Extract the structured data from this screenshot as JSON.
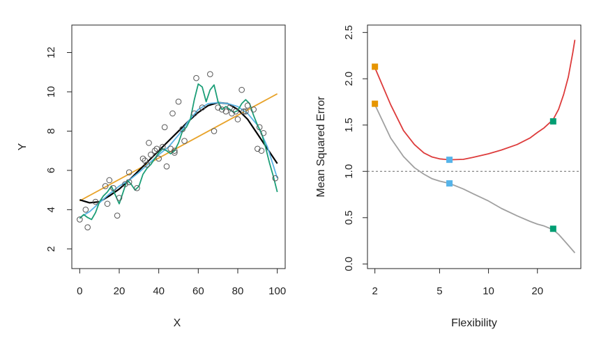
{
  "chart_data": [
    {
      "type": "scatter",
      "xlabel": "X",
      "ylabel": "Y",
      "xlim": [
        -4,
        104
      ],
      "ylim": [
        1,
        13.4
      ],
      "xticks": [
        "0",
        "20",
        "40",
        "60",
        "80",
        "100"
      ],
      "yticks": [
        "2",
        "4",
        "6",
        "8",
        "10",
        "12"
      ],
      "grid": false,
      "points": {
        "name": "",
        "x": [
          0,
          3,
          4,
          8,
          13,
          14,
          15,
          17,
          19,
          20,
          23,
          25,
          25,
          29,
          32,
          33,
          34,
          35,
          36,
          38,
          39,
          40,
          42,
          43,
          44,
          46,
          47,
          48,
          48,
          50,
          52,
          53,
          58,
          59,
          62,
          66,
          68,
          70,
          72,
          74,
          76,
          77,
          79,
          80,
          82,
          83,
          84,
          85,
          88,
          90,
          91,
          92,
          93,
          99
        ],
        "y": [
          3.5,
          4.0,
          3.1,
          4.4,
          5.2,
          4.3,
          5.5,
          5.1,
          3.7,
          4.6,
          5.3,
          5.4,
          5.9,
          5.1,
          6.6,
          6.5,
          6.3,
          7.4,
          6.8,
          7.0,
          7.1,
          6.6,
          7.2,
          8.2,
          6.2,
          7.1,
          8.9,
          7.0,
          6.9,
          9.5,
          8.1,
          7.5,
          8.9,
          10.7,
          9.2,
          10.9,
          8.0,
          9.2,
          9.1,
          9.0,
          9.2,
          8.9,
          9.0,
          8.6,
          10.1,
          9.0,
          9.0,
          9.3,
          9.1,
          7.1,
          8.2,
          7.0,
          7.9,
          5.6
        ]
      },
      "series": [
        {
          "name": "",
          "color": "#e8a32a",
          "x": [
            0,
            100
          ],
          "y": [
            4.45,
            9.9
          ]
        },
        {
          "name": "",
          "color": "#000000",
          "x": [
            0,
            5,
            10,
            15,
            20,
            25,
            30,
            35,
            40,
            45,
            50,
            55,
            60,
            65,
            70,
            75,
            80,
            85,
            90,
            95,
            100
          ],
          "y": [
            4.5,
            4.35,
            4.4,
            4.7,
            5.05,
            5.5,
            6.0,
            6.5,
            7.0,
            7.5,
            8.0,
            8.5,
            8.95,
            9.3,
            9.45,
            9.4,
            9.1,
            8.6,
            7.85,
            7.1,
            6.35
          ]
        },
        {
          "name": "",
          "color": "#5ab4e6",
          "x": [
            0,
            5,
            10,
            15,
            20,
            25,
            30,
            35,
            40,
            45,
            50,
            55,
            60,
            65,
            70,
            75,
            80,
            85,
            90,
            95,
            100
          ],
          "y": [
            3.6,
            3.9,
            4.35,
            4.8,
            5.2,
            5.5,
            5.9,
            6.35,
            6.8,
            7.2,
            7.8,
            8.5,
            9.1,
            9.4,
            9.45,
            9.4,
            9.25,
            8.9,
            8.3,
            7.2,
            5.6
          ]
        },
        {
          "name": "",
          "color": "#1b9e77",
          "x": [
            0,
            2,
            4,
            6,
            8,
            10,
            12,
            14,
            16,
            18,
            20,
            22,
            24,
            26,
            28,
            30,
            32,
            34,
            36,
            38,
            40,
            42,
            44,
            46,
            48,
            50,
            52,
            54,
            56,
            58,
            60,
            62,
            64,
            66,
            68,
            70,
            72,
            74,
            76,
            78,
            80,
            82,
            84,
            86,
            88,
            90,
            92,
            94,
            96,
            98,
            100
          ],
          "y": [
            3.55,
            3.75,
            3.6,
            3.5,
            3.85,
            4.4,
            4.7,
            4.9,
            5.2,
            4.75,
            4.3,
            4.9,
            5.5,
            5.3,
            5.0,
            5.2,
            5.8,
            6.1,
            6.3,
            6.6,
            6.9,
            7.1,
            7.0,
            6.85,
            7.0,
            7.4,
            8.0,
            8.2,
            8.6,
            9.6,
            10.4,
            10.25,
            9.5,
            10.1,
            10.35,
            9.5,
            9.1,
            9.25,
            9.1,
            8.95,
            9.05,
            9.4,
            9.6,
            9.4,
            8.8,
            8.3,
            7.9,
            7.2,
            6.4,
            5.7,
            4.9
          ]
        }
      ]
    },
    {
      "type": "line",
      "xlabel": "Flexibility",
      "ylabel": "Mean Squared Error",
      "x_scale": "log",
      "xlim": [
        1.8,
        37
      ],
      "ylim": [
        -0.05,
        2.58
      ],
      "xticks": [
        "2",
        "5",
        "10",
        "20"
      ],
      "yticks": [
        "0.0",
        "0.5",
        "1.0",
        "1.5",
        "2.0",
        "2.5"
      ],
      "grid": false,
      "reference_line": {
        "y": 1.0,
        "style": "dashed",
        "color": "#666666"
      },
      "series": [
        {
          "name": "",
          "color": "#dd3b3b",
          "x": [
            2,
            2.5,
            3,
            3.5,
            4,
            4.5,
            5,
            5.75,
            7,
            8,
            10,
            12,
            15,
            18,
            20,
            22,
            25,
            27,
            29,
            31,
            33,
            34
          ],
          "y": [
            2.12,
            1.72,
            1.44,
            1.29,
            1.2,
            1.155,
            1.135,
            1.125,
            1.13,
            1.15,
            1.19,
            1.23,
            1.29,
            1.36,
            1.42,
            1.47,
            1.56,
            1.67,
            1.83,
            2.02,
            2.28,
            2.42
          ]
        },
        {
          "name": "",
          "color": "#a0a0a0",
          "x": [
            2,
            2.5,
            3,
            3.5,
            4,
            4.5,
            5,
            5.75,
            7,
            8,
            10,
            12,
            15,
            18,
            20,
            22,
            25,
            27,
            30,
            34
          ],
          "y": [
            1.72,
            1.36,
            1.16,
            1.04,
            0.97,
            0.92,
            0.895,
            0.87,
            0.81,
            0.76,
            0.68,
            0.6,
            0.52,
            0.46,
            0.43,
            0.41,
            0.37,
            0.32,
            0.23,
            0.12
          ]
        }
      ],
      "markers": [
        {
          "name": "",
          "color": "#e69500",
          "points": [
            [
              2,
              2.13
            ],
            [
              2,
              1.73
            ]
          ]
        },
        {
          "name": "",
          "color": "#56b4e9",
          "points": [
            [
              5.75,
              1.125
            ],
            [
              5.75,
              0.87
            ]
          ]
        },
        {
          "name": "",
          "color": "#009e73",
          "points": [
            [
              25,
              1.54
            ],
            [
              25,
              0.38
            ]
          ]
        }
      ]
    }
  ]
}
